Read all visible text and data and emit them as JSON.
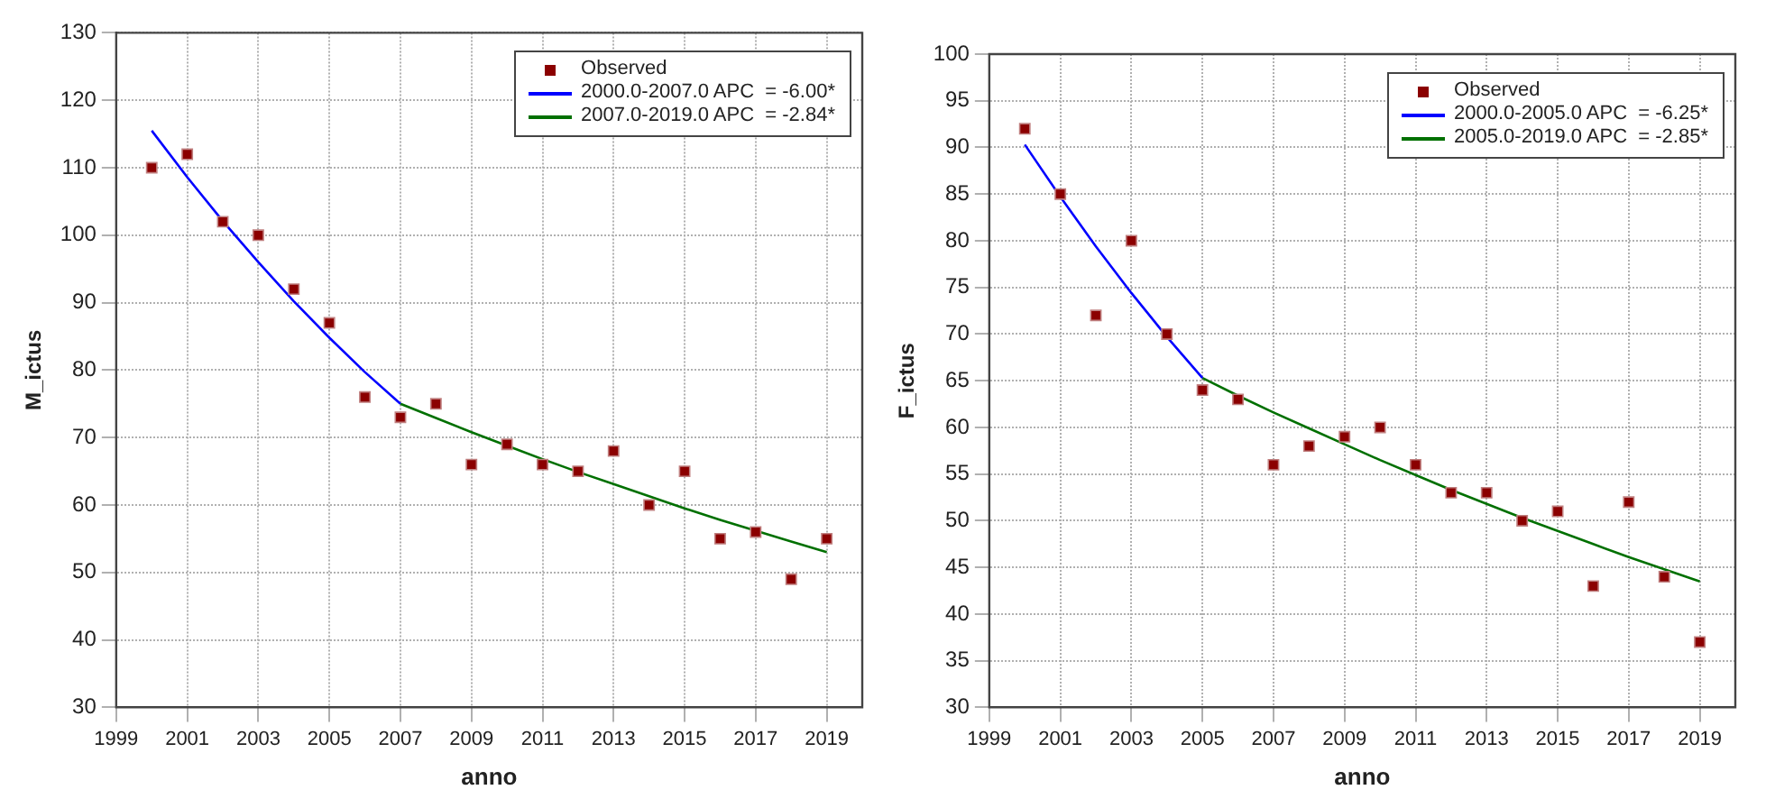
{
  "chart_data": [
    {
      "type": "scatter",
      "xlabel": "anno",
      "ylabel": "M_ictus",
      "xlim": [
        1999,
        2020
      ],
      "xticks": [
        1999,
        2001,
        2003,
        2005,
        2007,
        2009,
        2011,
        2013,
        2015,
        2017,
        2019
      ],
      "ylim": [
        30,
        130
      ],
      "yticks": [
        30,
        40,
        50,
        60,
        70,
        80,
        90,
        100,
        110,
        120,
        130
      ],
      "grid": true,
      "legend": "top right",
      "series": [
        {
          "name": "Observed",
          "type": "scatter",
          "marker": "square",
          "color": "#8b0000",
          "x": [
            2000,
            2001,
            2002,
            2003,
            2004,
            2005,
            2006,
            2007,
            2008,
            2009,
            2010,
            2011,
            2012,
            2013,
            2014,
            2015,
            2016,
            2017,
            2018,
            2019
          ],
          "values": [
            110,
            112,
            102,
            100,
            92,
            87,
            76,
            73,
            75,
            66,
            69,
            66,
            65,
            68,
            60,
            65,
            55,
            56,
            49,
            55
          ]
        },
        {
          "name": "2000.0-2007.0 APC  = -6.00*",
          "type": "line",
          "marker": "none",
          "color": "#0000ff",
          "x": [
            2000,
            2001,
            2002,
            2003,
            2004,
            2005,
            2006,
            2007
          ],
          "values": [
            115.5,
            108.6,
            102.1,
            96,
            90.2,
            84.8,
            79.7,
            75
          ]
        },
        {
          "name": "2007.0-2019.0 APC  = -2.84*",
          "type": "line",
          "marker": "none",
          "color": "#007000",
          "x": [
            2007,
            2008,
            2009,
            2010,
            2011,
            2012,
            2013,
            2014,
            2015,
            2016,
            2017,
            2018,
            2019
          ],
          "values": [
            75,
            72.9,
            70.8,
            68.8,
            66.8,
            64.9,
            63.1,
            61.3,
            59.5,
            57.8,
            56.2,
            54.6,
            53
          ]
        }
      ]
    },
    {
      "type": "scatter",
      "xlabel": "anno",
      "ylabel": "F_ictus",
      "xlim": [
        1999,
        2020
      ],
      "xticks": [
        1999,
        2001,
        2003,
        2005,
        2007,
        2009,
        2011,
        2013,
        2015,
        2017,
        2019
      ],
      "ylim": [
        30,
        100
      ],
      "yticks": [
        30,
        35,
        40,
        45,
        50,
        55,
        60,
        65,
        70,
        75,
        80,
        85,
        90,
        95,
        100
      ],
      "grid": true,
      "legend": "top right",
      "series": [
        {
          "name": "Observed",
          "type": "scatter",
          "marker": "square",
          "color": "#8b0000",
          "x": [
            2000,
            2001,
            2002,
            2003,
            2004,
            2005,
            2006,
            2007,
            2008,
            2009,
            2010,
            2011,
            2012,
            2013,
            2014,
            2015,
            2016,
            2017,
            2018,
            2019
          ],
          "values": [
            92,
            85,
            72,
            80,
            70,
            64,
            63,
            56,
            58,
            59,
            60,
            56,
            53,
            53,
            50,
            51,
            43,
            52,
            44,
            37
          ]
        },
        {
          "name": "2000.0-2005.0 APC  = -6.25*",
          "type": "line",
          "marker": "none",
          "color": "#0000ff",
          "x": [
            2000,
            2001,
            2002,
            2003,
            2004,
            2005
          ],
          "values": [
            90.3,
            84.7,
            79.4,
            74.4,
            69.7,
            65.3
          ]
        },
        {
          "name": "2005.0-2019.0 APC  = -2.85*",
          "type": "line",
          "marker": "none",
          "color": "#007000",
          "x": [
            2005,
            2006,
            2007,
            2008,
            2009,
            2010,
            2011,
            2012,
            2013,
            2014,
            2015,
            2016,
            2017,
            2018,
            2019
          ],
          "values": [
            65.3,
            63.4,
            61.6,
            59.9,
            58.2,
            56.5,
            54.9,
            53.3,
            51.8,
            50.3,
            48.9,
            47.5,
            46.1,
            44.8,
            43.5
          ]
        }
      ]
    }
  ]
}
